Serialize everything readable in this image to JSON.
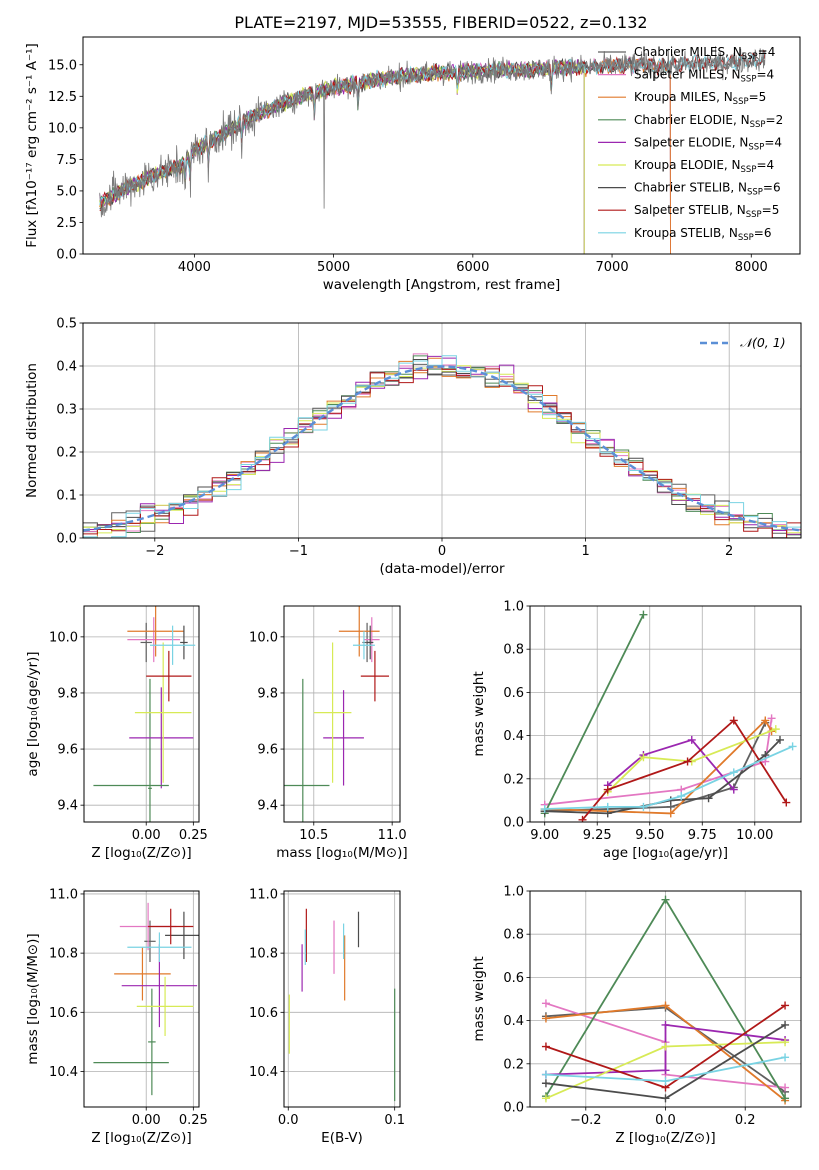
{
  "figure_title": "PLATE=2197, MJD=53555, FIBERID=0522, z=0.132",
  "colors": {
    "Chabrier MILES": "#606060",
    "Salpeter MILES": "#e377c2",
    "Kroupa MILES": "#e07a2b",
    "Chabrier ELODIE": "#4e8a57",
    "Salpeter ELODIE": "#9b27b0",
    "Kroupa ELODIE": "#d7ea56",
    "Chabrier STELIB": "#4c4c4c",
    "Salpeter STELIB": "#b01818",
    "Kroupa STELIB": "#79d3e3"
  },
  "chart_data": [
    {
      "id": "spectrum",
      "type": "line",
      "title": "PLATE=2197, MJD=53555, FIBERID=0522, z=0.132",
      "xlabel": "wavelength [Angstrom, rest frame]",
      "ylabel": "Flux [fλ10⁻¹⁷ erg cm⁻² s⁻¹ A⁻¹]",
      "xlim": [
        3200,
        8350
      ],
      "ylim": [
        0,
        17.2
      ],
      "xticks": [
        "4000",
        "5000",
        "6000",
        "7000",
        "8000"
      ],
      "yticks": [
        "0.0",
        "2.5",
        "5.0",
        "7.5",
        "10.0",
        "12.5",
        "15.0"
      ],
      "legend_position": "top-right",
      "legend": [
        {
          "name": "Chabrier MILES",
          "nssp": "4"
        },
        {
          "name": "Salpeter MILES",
          "nssp": "4"
        },
        {
          "name": "Kroupa MILES",
          "nssp": "5"
        },
        {
          "name": "Chabrier ELODIE",
          "nssp": "2"
        },
        {
          "name": "Salpeter ELODIE",
          "nssp": "4"
        },
        {
          "name": "Kroupa ELODIE",
          "nssp": "4"
        },
        {
          "name": "Chabrier STELIB",
          "nssp": "6"
        },
        {
          "name": "Salpeter STELIB",
          "nssp": "5"
        },
        {
          "name": "Kroupa STELIB",
          "nssp": "6"
        }
      ],
      "continuum": [
        [
          3320,
          4.0
        ],
        [
          3500,
          5.2
        ],
        [
          3700,
          6.2
        ],
        [
          3900,
          7.0
        ],
        [
          4000,
          8.2
        ],
        [
          4200,
          9.5
        ],
        [
          4400,
          10.8
        ],
        [
          4600,
          11.8
        ],
        [
          4800,
          12.6
        ],
        [
          5000,
          13.2
        ],
        [
          5200,
          13.6
        ],
        [
          5400,
          14.0
        ],
        [
          5600,
          14.2
        ],
        [
          5800,
          14.4
        ],
        [
          6000,
          14.5
        ],
        [
          6200,
          14.6
        ],
        [
          6400,
          14.6
        ],
        [
          6600,
          14.8
        ],
        [
          6800,
          14.8
        ],
        [
          7000,
          14.9
        ],
        [
          7200,
          15.0
        ],
        [
          7400,
          14.9
        ],
        [
          7600,
          15.1
        ],
        [
          7800,
          15.1
        ],
        [
          8000,
          15.4
        ],
        [
          8100,
          15.5
        ]
      ]
    },
    {
      "id": "residuals",
      "type": "step",
      "xlabel": "(data-model)/error",
      "ylabel": "Normed distribution",
      "xlim": [
        -2.5,
        2.5
      ],
      "ylim": [
        0,
        0.5
      ],
      "xticks": [
        "−2",
        "−1",
        "0",
        "1",
        "2"
      ],
      "yticks": [
        "0.0",
        "0.1",
        "0.2",
        "0.3",
        "0.4",
        "0.5"
      ],
      "grid": true,
      "legend_position": "top-right",
      "legend": "𝒩(0, 1)",
      "gaussian": {
        "mean": 0,
        "sigma": 1
      },
      "bin_width": 0.1
    },
    {
      "id": "age-vs-Z",
      "type": "errorbar",
      "xlabel": "Z [log₁₀(Z/Z⊙)]",
      "ylabel": "age  [log₁₀(age/yr)]",
      "xlim": [
        -0.33,
        0.28
      ],
      "ylim": [
        9.34,
        10.11
      ],
      "xticks": [
        "0.00",
        "0.25"
      ],
      "yticks": [
        "9.4",
        "9.6",
        "9.8",
        "10.0"
      ],
      "grid": true,
      "points": [
        {
          "model": "Chabrier MILES",
          "x": 0.0,
          "xerr": 0.03,
          "y": 9.98,
          "yerr": 0.07
        },
        {
          "model": "Salpeter MILES",
          "x": 0.04,
          "xerr": 0.14,
          "y": 9.99,
          "yerr": 0.08
        },
        {
          "model": "Kroupa MILES",
          "x": 0.05,
          "xerr": 0.15,
          "y": 10.02,
          "yerr": 0.09
        },
        {
          "model": "Chabrier ELODIE",
          "x": 0.02,
          "xerr": 0.01,
          "y": 9.46,
          "yerr": 0.39
        },
        {
          "model": "Salpeter ELODIE",
          "x": 0.08,
          "xerr": 0.17,
          "y": 9.64,
          "yerr": 0.18
        },
        {
          "model": "Kroupa ELODIE",
          "x": 0.09,
          "xerr": 0.15,
          "y": 9.73,
          "yerr": 0.25
        },
        {
          "model": "Chabrier STELIB",
          "x": 0.2,
          "xerr": 0.02,
          "y": 9.98,
          "yerr": 0.06
        },
        {
          "model": "Salpeter STELIB",
          "x": 0.12,
          "xerr": 0.12,
          "y": 9.86,
          "yerr": 0.09
        },
        {
          "model": "Kroupa STELIB",
          "x": 0.14,
          "xerr": 0.12,
          "y": 9.97,
          "yerr": 0.07
        },
        {
          "model": "Chabrier ELODIE",
          "x": -0.08,
          "xerr": 0.2,
          "y": 9.47,
          "yerr": 0.0
        }
      ]
    },
    {
      "id": "age-vs-mass",
      "type": "errorbar",
      "xlabel": "mass [log₁₀(M/M⊙)]",
      "ylabel": "",
      "xlim": [
        10.31,
        11.05
      ],
      "ylim": [
        9.34,
        10.11
      ],
      "xticks": [
        "10.5",
        "11.0"
      ],
      "yticks": [
        "9.4",
        "9.6",
        "9.8",
        "10.0"
      ],
      "grid": true,
      "points": [
        {
          "model": "Chabrier MILES",
          "x": 10.84,
          "xerr": 0.03,
          "y": 9.98,
          "yerr": 0.07
        },
        {
          "model": "Salpeter MILES",
          "x": 10.87,
          "xerr": 0.05,
          "y": 9.99,
          "yerr": 0.08
        },
        {
          "model": "Kroupa MILES",
          "x": 10.79,
          "xerr": 0.13,
          "y": 10.02,
          "yerr": 0.09
        },
        {
          "model": "Chabrier ELODIE",
          "x": 10.43,
          "xerr": 0.17,
          "y": 9.47,
          "yerr": 0.38
        },
        {
          "model": "Salpeter ELODIE",
          "x": 10.69,
          "xerr": 0.13,
          "y": 9.64,
          "yerr": 0.17
        },
        {
          "model": "Kroupa ELODIE",
          "x": 10.62,
          "xerr": 0.12,
          "y": 9.73,
          "yerr": 0.25
        },
        {
          "model": "Chabrier STELIB",
          "x": 10.86,
          "xerr": 0.02,
          "y": 9.98,
          "yerr": 0.06
        },
        {
          "model": "Salpeter STELIB",
          "x": 10.89,
          "xerr": 0.09,
          "y": 9.86,
          "yerr": 0.09
        },
        {
          "model": "Kroupa STELIB",
          "x": 10.82,
          "xerr": 0.07,
          "y": 9.97,
          "yerr": 0.05
        }
      ]
    },
    {
      "id": "weight-vs-age",
      "type": "line",
      "xlabel": "age  [log₁₀(age/yr)]",
      "ylabel": "mass weight",
      "xlim": [
        8.93,
        10.22
      ],
      "ylim": [
        0,
        1
      ],
      "xticks": [
        "9.00",
        "9.25",
        "9.50",
        "9.75",
        "10.00"
      ],
      "yticks": [
        "0.0",
        "0.2",
        "0.4",
        "0.6",
        "0.8",
        "1.0"
      ],
      "grid": true,
      "series": [
        {
          "model": "Chabrier MILES",
          "x": [
            9.0,
            9.6,
            9.9,
            10.05
          ],
          "y": [
            0.05,
            0.07,
            0.16,
            0.46
          ]
        },
        {
          "model": "Salpeter MILES",
          "x": [
            9.0,
            9.65,
            10.05,
            10.08
          ],
          "y": [
            0.08,
            0.15,
            0.28,
            0.48
          ]
        },
        {
          "model": "Kroupa MILES",
          "x": [
            9.0,
            9.6,
            10.05,
            10.08
          ],
          "y": [
            0.06,
            0.04,
            0.47,
            0.42
          ]
        },
        {
          "model": "Chabrier ELODIE",
          "x": [
            9.0,
            9.47
          ],
          "y": [
            0.04,
            0.96
          ]
        },
        {
          "model": "Salpeter ELODIE",
          "x": [
            9.3,
            9.47,
            9.7,
            9.9
          ],
          "y": [
            0.17,
            0.31,
            0.38,
            0.15
          ]
        },
        {
          "model": "Kroupa ELODIE",
          "x": [
            9.3,
            9.47,
            9.7,
            10.1
          ],
          "y": [
            0.14,
            0.3,
            0.28,
            0.43
          ]
        },
        {
          "model": "Chabrier STELIB",
          "x": [
            9.0,
            9.3,
            9.6,
            9.78,
            10.05,
            10.12
          ],
          "y": [
            0.05,
            0.04,
            0.1,
            0.11,
            0.31,
            0.38
          ]
        },
        {
          "model": "Salpeter STELIB",
          "x": [
            9.18,
            9.3,
            9.68,
            9.9,
            10.15
          ],
          "y": [
            0.01,
            0.15,
            0.28,
            0.47,
            0.09
          ]
        },
        {
          "model": "Kroupa STELIB",
          "x": [
            9.0,
            9.3,
            9.47,
            9.65,
            9.9,
            10.18
          ],
          "y": [
            0.06,
            0.07,
            0.07,
            0.12,
            0.23,
            0.35
          ]
        }
      ]
    },
    {
      "id": "mass-vs-Z",
      "type": "errorbar",
      "xlabel": "Z [log₁₀(Z/Z⊙)]",
      "ylabel": "mass [log₁₀(M/M⊙)]",
      "xlim": [
        -0.33,
        0.28
      ],
      "ylim": [
        10.28,
        11.01
      ],
      "xticks": [
        "0.00",
        "0.25"
      ],
      "yticks": [
        "10.4",
        "10.6",
        "10.8",
        "11.0"
      ],
      "grid": true,
      "points": [
        {
          "model": "Chabrier MILES",
          "x": 0.02,
          "xerr": 0.03,
          "y": 10.84,
          "yerr": 0.07
        },
        {
          "model": "Salpeter MILES",
          "x": 0.01,
          "xerr": 0.15,
          "y": 10.89,
          "yerr": 0.08
        },
        {
          "model": "Kroupa MILES",
          "x": -0.02,
          "xerr": 0.15,
          "y": 10.73,
          "yerr": 0.09
        },
        {
          "model": "Chabrier ELODIE",
          "x": 0.03,
          "xerr": 0.02,
          "y": 10.5,
          "yerr": 0.18
        },
        {
          "model": "Salpeter ELODIE",
          "x": 0.07,
          "xerr": 0.2,
          "y": 10.69,
          "yerr": 0.14
        },
        {
          "model": "Kroupa ELODIE",
          "x": 0.1,
          "xerr": 0.15,
          "y": 10.62,
          "yerr": 0.1
        },
        {
          "model": "Chabrier STELIB",
          "x": 0.2,
          "xerr": 0.1,
          "y": 10.86,
          "yerr": 0.08
        },
        {
          "model": "Salpeter STELIB",
          "x": 0.13,
          "xerr": 0.12,
          "y": 10.89,
          "yerr": 0.06
        },
        {
          "model": "Kroupa STELIB",
          "x": 0.07,
          "xerr": 0.17,
          "y": 10.82,
          "yerr": 0.05
        },
        {
          "model": "Chabrier ELODIE",
          "x": -0.08,
          "xerr": 0.2,
          "y": 10.43,
          "yerr": 0.0
        }
      ]
    },
    {
      "id": "mass-vs-EBV",
      "type": "errorbar",
      "xlabel": "E(B-V)",
      "ylabel": "",
      "xlim": [
        -0.004,
        0.105
      ],
      "ylim": [
        10.28,
        11.01
      ],
      "xticks": [
        "0.0",
        "0.1"
      ],
      "yticks": [
        "10.4",
        "10.6",
        "10.8",
        "11.0"
      ],
      "grid": true,
      "points": [
        {
          "model": "Kroupa ELODIE",
          "x": 0.001,
          "xerr": 0.0,
          "y": 10.56,
          "yerr": 0.1
        },
        {
          "model": "Salpeter ELODIE",
          "x": 0.013,
          "xerr": 0.0,
          "y": 10.75,
          "yerr": 0.08
        },
        {
          "model": "Salpeter STELIB",
          "x": 0.017,
          "xerr": 0.0,
          "y": 10.86,
          "yerr": 0.09
        },
        {
          "model": "Kroupa STELIB",
          "x": 0.016,
          "xerr": 0.0,
          "y": 10.82,
          "yerr": 0.06
        },
        {
          "model": "Salpeter MILES",
          "x": 0.043,
          "xerr": 0.0,
          "y": 10.82,
          "yerr": 0.09
        },
        {
          "model": "Kroupa MILES",
          "x": 0.053,
          "xerr": 0.0,
          "y": 10.75,
          "yerr": 0.11
        },
        {
          "model": "Kroupa STELIB",
          "x": 0.052,
          "xerr": 0.0,
          "y": 10.84,
          "yerr": 0.06
        },
        {
          "model": "Chabrier STELIB",
          "x": 0.066,
          "xerr": 0.0,
          "y": 10.88,
          "yerr": 0.06
        },
        {
          "model": "Chabrier ELODIE",
          "x": 0.1,
          "xerr": 0.0,
          "y": 10.49,
          "yerr": 0.19
        }
      ]
    },
    {
      "id": "weight-vs-Z",
      "type": "line",
      "xlabel": "Z [log₁₀(Z/Z⊙)]",
      "ylabel": "mass weight",
      "xlim": [
        -0.34,
        0.34
      ],
      "ylim": [
        0,
        1
      ],
      "xticks": [
        "−0.2",
        "0.0",
        "0.2"
      ],
      "yticks": [
        "0.0",
        "0.2",
        "0.4",
        "0.6",
        "0.8",
        "1.0"
      ],
      "grid": true,
      "series": [
        {
          "model": "Chabrier MILES",
          "x": [
            -0.3,
            0.0,
            0.3
          ],
          "y": [
            0.42,
            0.46,
            0.07
          ]
        },
        {
          "model": "Salpeter MILES",
          "x": [
            -0.3,
            0.0,
            0.0,
            0.3
          ],
          "y": [
            0.48,
            0.3,
            0.15,
            0.09
          ]
        },
        {
          "model": "Kroupa MILES",
          "x": [
            -0.3,
            0.0,
            0.3
          ],
          "y": [
            0.41,
            0.47,
            0.03
          ]
        },
        {
          "model": "Chabrier ELODIE",
          "x": [
            -0.3,
            0.0,
            0.3
          ],
          "y": [
            0.05,
            0.96,
            0.04
          ]
        },
        {
          "model": "Salpeter ELODIE",
          "x": [
            -0.3,
            0.0,
            0.0,
            0.3
          ],
          "y": [
            0.15,
            0.17,
            0.38,
            0.31
          ]
        },
        {
          "model": "Kroupa ELODIE",
          "x": [
            -0.3,
            0.0,
            0.3
          ],
          "y": [
            0.04,
            0.28,
            0.3
          ]
        },
        {
          "model": "Chabrier STELIB",
          "x": [
            -0.3,
            0.0,
            0.3
          ],
          "y": [
            0.11,
            0.04,
            0.38
          ]
        },
        {
          "model": "Salpeter STELIB",
          "x": [
            -0.3,
            0.0,
            0.3
          ],
          "y": [
            0.28,
            0.09,
            0.47
          ]
        },
        {
          "model": "Kroupa STELIB",
          "x": [
            -0.3,
            0.0,
            0.3
          ],
          "y": [
            0.15,
            0.12,
            0.23
          ]
        }
      ]
    }
  ]
}
